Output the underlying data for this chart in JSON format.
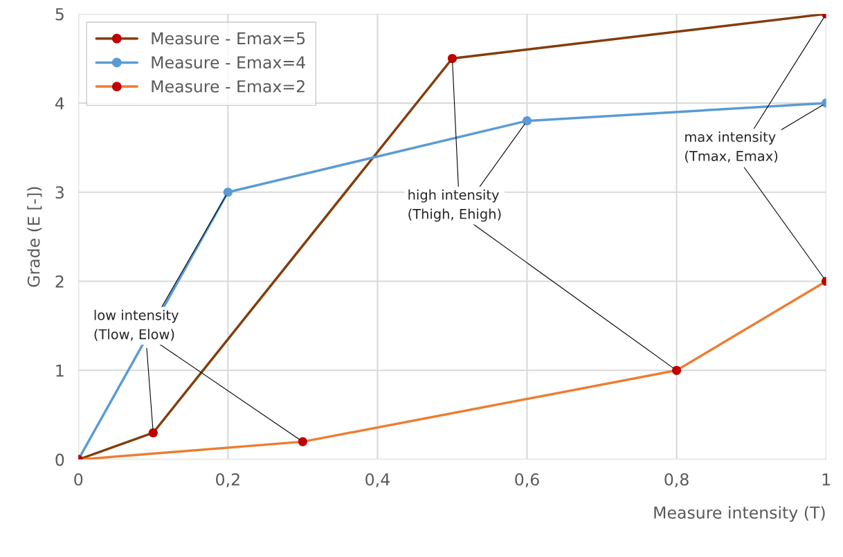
{
  "chart_data": {
    "type": "line",
    "xlabel": "Measure intensity (T)",
    "ylabel": "Grade (E [-])",
    "xlim": [
      0,
      1
    ],
    "ylim": [
      0,
      5
    ],
    "xticks": [
      0,
      {
        "value": 0.2,
        "label": "0,2"
      },
      {
        "value": 0.4,
        "label": "0,4"
      },
      {
        "value": 0.6,
        "label": "0,6"
      },
      {
        "value": 0.8,
        "label": "0,8"
      },
      1
    ],
    "yticks": [
      0,
      1,
      2,
      3,
      4,
      5
    ],
    "grid": true,
    "legend": "top left",
    "marker": "circle",
    "line_style": "solid",
    "series": [
      {
        "name": "Measure - Emax=5",
        "color": "#843c0c",
        "colors": [
          "#c00000",
          "#c00000",
          "#c00000",
          "#c00000"
        ],
        "x": [
          0,
          0.1,
          0.5,
          1
        ],
        "values": [
          0,
          0.3,
          4.5,
          5
        ]
      },
      {
        "name": "Measure - Emax=4",
        "color": "#5b9bd5",
        "colors": [
          "#5b9bd5",
          "#5b9bd5",
          "#5b9bd5",
          "#5b9bd5"
        ],
        "x": [
          0,
          0.2,
          0.6,
          1
        ],
        "values": [
          0,
          3,
          3.8,
          4
        ]
      },
      {
        "name": "Measure - Emax=2",
        "color": "#ed7d31",
        "colors": [
          "#c00000",
          "#c00000",
          "#c00000",
          "#c00000"
        ],
        "x": [
          0,
          0.3,
          0.8,
          1
        ],
        "values": [
          0,
          0.2,
          1,
          2
        ]
      }
    ],
    "annotations": [
      {
        "text": "low intensity\n(Tlow, Elow)",
        "x": 0.1,
        "y": 0.3
      },
      {
        "text": "high intensity\n(Thigh, Ehigh)",
        "x": 0.5,
        "y": 4.5
      },
      {
        "text": "max intensity\n(Tmax, Emax)",
        "x": 1,
        "y": 5
      }
    ]
  }
}
